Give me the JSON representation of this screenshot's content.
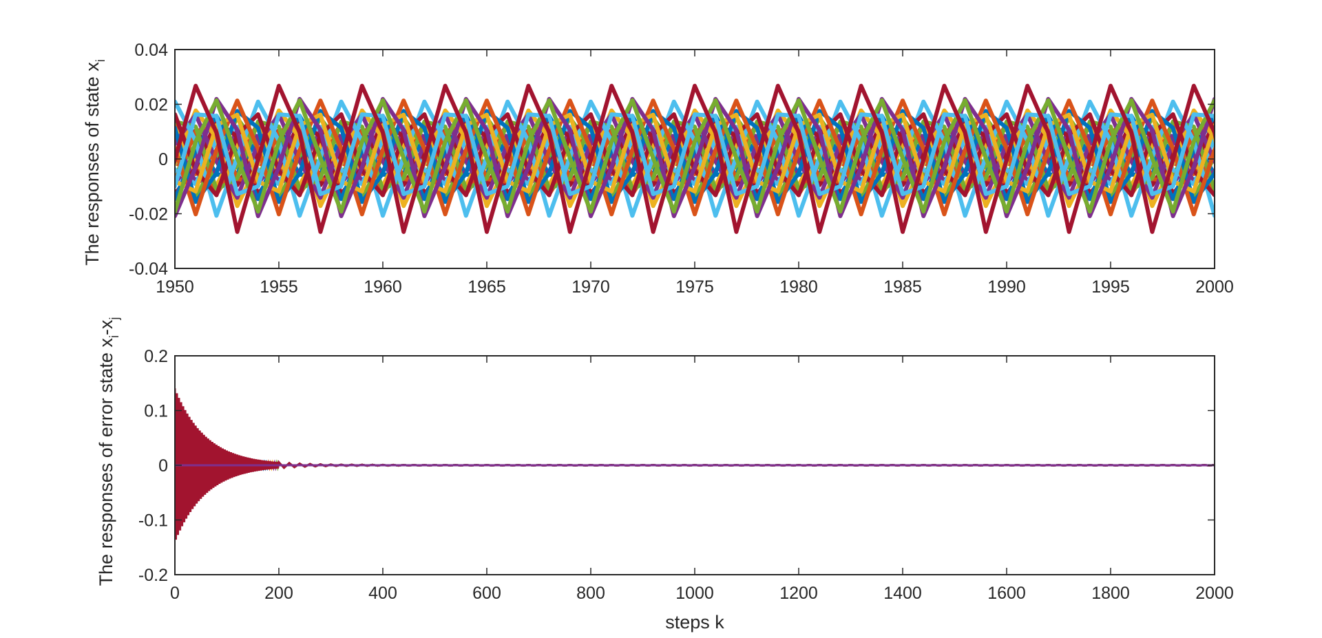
{
  "chart_data": [
    {
      "type": "line",
      "title": "",
      "xlabel": "",
      "ylabel": "The responses of state x",
      "ylabel_sub": "i",
      "xlim": [
        1950,
        2000
      ],
      "ylim": [
        -0.04,
        0.04
      ],
      "xticks": [
        1950,
        1955,
        1960,
        1965,
        1970,
        1975,
        1980,
        1985,
        1990,
        1995,
        2000
      ],
      "xtick_labels": [
        "1950",
        "1955",
        "1960",
        "1965",
        "1970",
        "1975",
        "1980",
        "1985",
        "1990",
        "1995",
        "2000"
      ],
      "yticks": [
        -0.04,
        -0.02,
        0,
        0.02,
        0.04
      ],
      "ytick_labels": [
        "-0.04",
        "-0.02",
        "0",
        "0.02",
        "0.04"
      ],
      "grid": false,
      "signal": {
        "period_steps": 4,
        "amplitude_max": 0.027,
        "amplitude_band_min": 0.008,
        "note_series_count": 28
      },
      "series_colors": [
        "#0072BD",
        "#D95319",
        "#EDB120",
        "#7E2F8E",
        "#77AC30",
        "#4DBEEE",
        "#A2142F"
      ]
    },
    {
      "type": "line",
      "title": "",
      "xlabel": "steps k",
      "ylabel": "The responses of error state x",
      "ylabel_sub1": "i",
      "ylabel_mid": "-x",
      "ylabel_sub2": "j",
      "xlim": [
        0,
        2000
      ],
      "ylim": [
        -0.2,
        0.2
      ],
      "xticks": [
        0,
        200,
        400,
        600,
        800,
        1000,
        1200,
        1400,
        1600,
        1800,
        2000
      ],
      "xtick_labels": [
        "0",
        "200",
        "400",
        "600",
        "800",
        "1000",
        "1200",
        "1400",
        "1600",
        "1800",
        "2000"
      ],
      "yticks": [
        -0.2,
        -0.1,
        0,
        0.1,
        0.2
      ],
      "ytick_labels": [
        "-0.2",
        "-0.1",
        "0",
        "0.1",
        "0.2"
      ],
      "grid": false,
      "envelope": {
        "initial_amplitude": 0.14,
        "decay_steps": 60,
        "converges_to": 0
      },
      "series_colors": [
        "#0072BD",
        "#D95319",
        "#EDB120",
        "#7E2F8E",
        "#77AC30",
        "#4DBEEE",
        "#A2142F"
      ]
    }
  ]
}
